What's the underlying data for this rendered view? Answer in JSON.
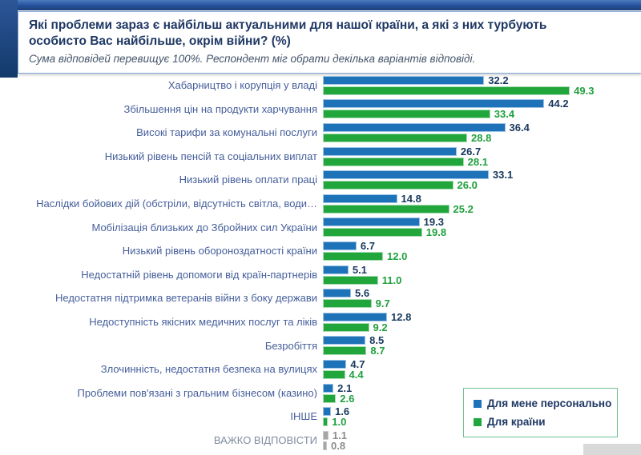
{
  "header": {
    "title": "Які проблеми зараз є найбільш актуальними для нашої країни, а які з них турбують особисто Вас найбільше, окрім війни? (%)",
    "subtitle": "Сума відповідей перевищує 100%. Респондент міг обрати декілька варіантів відповіді."
  },
  "legend": {
    "items": [
      {
        "label": "Для мене персонально",
        "color": "#1e73b8"
      },
      {
        "label": "Для країни",
        "color": "#21a63c"
      }
    ],
    "border_color": "#6fbf92"
  },
  "chart_data": {
    "type": "bar",
    "orientation": "horizontal",
    "unit": "%",
    "title": "Які проблеми зараз є найбільш актуальними для нашої країни, а які з них турбують особисто Вас найбільше, окрім війни? (%)",
    "note": "Сума відповідей перевищує 100%. Респондент міг обрати декілька варіантів відповіді.",
    "categories": [
      "Хабарництво і корупція у владі",
      "Збільшення цін на продукти харчування",
      "Високі тарифи за комунальні послуги",
      "Низький рівень пенсій та соціальних виплат",
      "Низький рівень оплати праці",
      "Наслідки бойових дій (обстріли, відсутність світла, води…",
      "Мобілізація близьких до Збройних сил України",
      "Низький рівень обороноздатності країни",
      "Недостатній рівень допомоги від країн-партнерів",
      "Недостатня підтримка ветеранів війни з боку держави",
      "Недоступність якісних медичних послуг та ліків",
      "Безробіття",
      "Злочинність, недостатня безпека на вулицях",
      "Проблеми пов'язані з гральним бізнесом (казино)",
      "ІНШЕ",
      "ВАЖКО ВІДПОВІСТИ"
    ],
    "series": [
      {
        "name": "Для мене персонально",
        "color": "#1e73b8",
        "border_color": "#9dc3e6",
        "value_color": "#17375d",
        "values": [
          32.2,
          44.2,
          36.4,
          26.7,
          33.1,
          14.8,
          19.3,
          6.7,
          5.1,
          5.6,
          12.8,
          8.5,
          4.7,
          2.1,
          1.6,
          1.1
        ]
      },
      {
        "name": "Для країни",
        "color": "#21a63c",
        "border_color": "#a8dbb4",
        "value_color": "#1fa03c",
        "values": [
          49.3,
          33.4,
          28.8,
          28.1,
          26.0,
          25.2,
          19.8,
          12.0,
          11.0,
          9.7,
          9.2,
          8.7,
          4.4,
          2.6,
          1.0,
          0.8
        ]
      }
    ],
    "muted_rows": [
      15
    ],
    "muted_bar_color": "#a6a6a6",
    "muted_border_color": "#c9c9c9",
    "muted_value_color": "#8c8c8c",
    "muted_label_color": "#7f8c9f",
    "value_labels": true,
    "xlim": [
      0,
      55
    ],
    "grid": false,
    "legend_position": "bottom-right"
  }
}
